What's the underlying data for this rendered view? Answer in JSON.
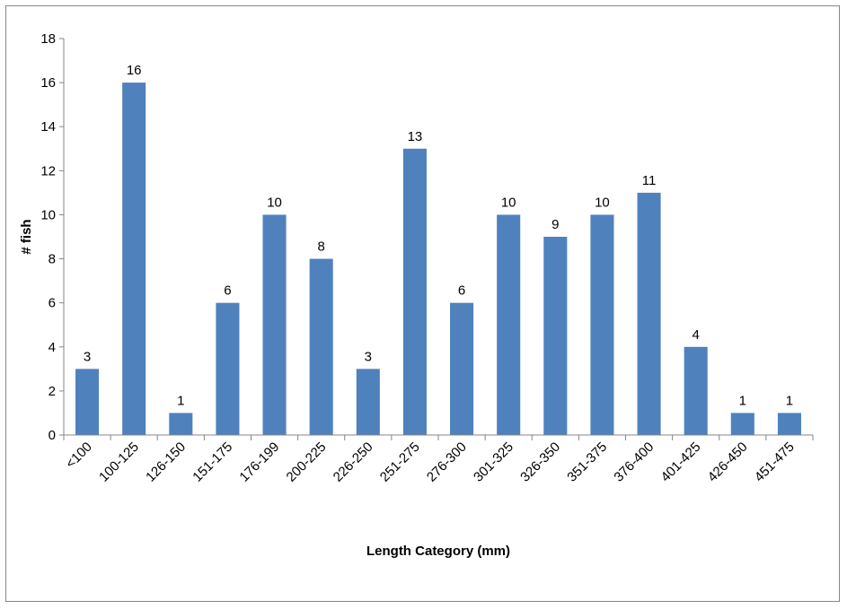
{
  "chart_data": {
    "type": "bar",
    "categories": [
      "<100",
      "100-125",
      "126-150",
      "151-175",
      "176-199",
      "200-225",
      "226-250",
      "251-275",
      "276-300",
      "301-325",
      "326-350",
      "351-375",
      "376-400",
      "401-425",
      "426-450",
      "451-475"
    ],
    "values": [
      3,
      16,
      1,
      6,
      10,
      8,
      3,
      13,
      6,
      10,
      9,
      10,
      11,
      4,
      1,
      1
    ],
    "title": "",
    "xlabel": "Length Category (mm)",
    "ylabel": "# fish",
    "ylim": [
      0,
      18
    ],
    "yticks": [
      0,
      2,
      4,
      6,
      8,
      10,
      12,
      14,
      16,
      18
    ],
    "data_labels": true,
    "grid": false,
    "legend": "none",
    "bar_color": "#4f81bd"
  }
}
